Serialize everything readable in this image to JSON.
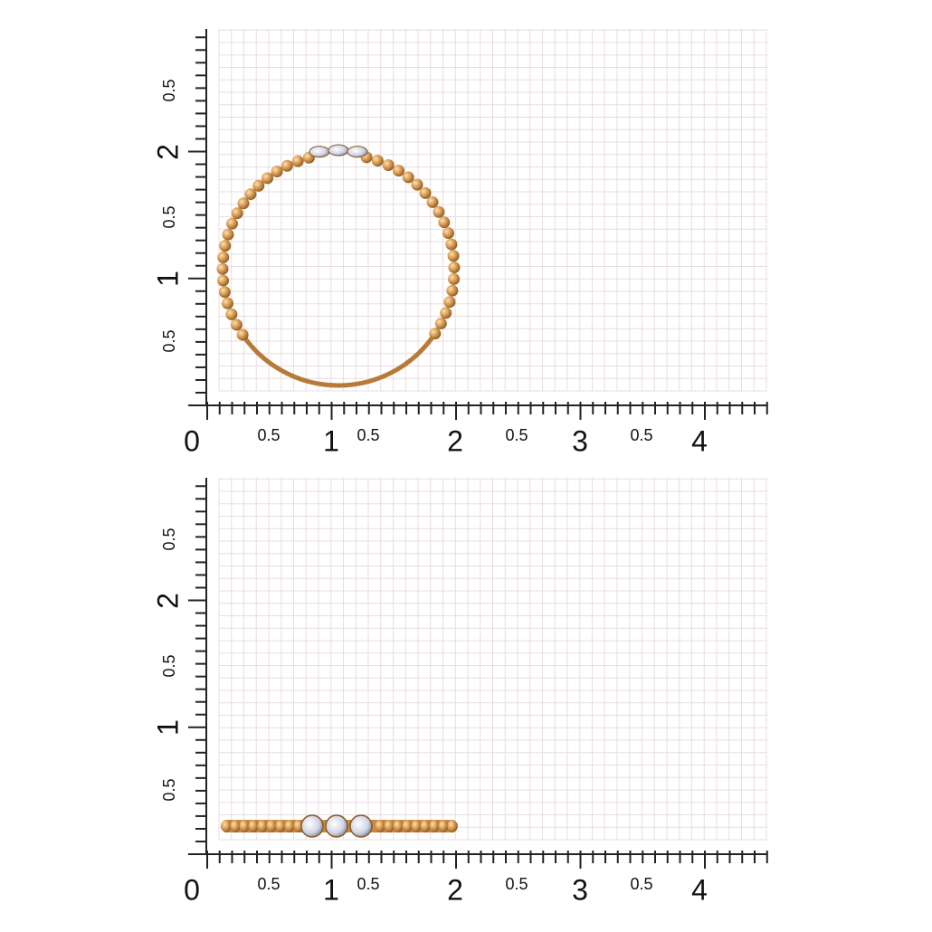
{
  "panels": [
    {
      "x_labels": [
        "0",
        "0.5",
        "1",
        "0.5",
        "2",
        "0.5",
        "3",
        "0.5",
        "4"
      ],
      "y_labels": [
        "0.5",
        "1",
        "0.5",
        "2",
        "0.5"
      ]
    },
    {
      "x_labels": [
        "0",
        "0.5",
        "1",
        "0.5",
        "2",
        "0.5",
        "3",
        "0.5",
        "4"
      ],
      "y_labels": [
        "0.5",
        "1",
        "0.5",
        "2",
        "0.5"
      ]
    }
  ]
}
